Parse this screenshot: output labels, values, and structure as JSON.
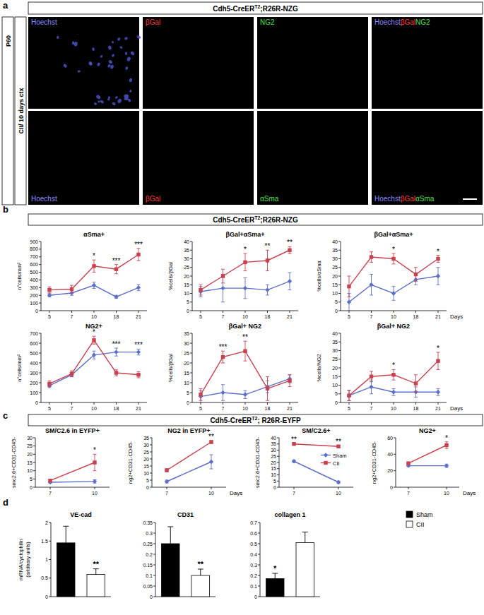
{
  "figure": {
    "panel_labels": [
      "a",
      "b",
      "c",
      "d"
    ],
    "panel_a": {
      "header": {
        "pre": "Cdh5-CreER",
        "sup": "T2",
        "post": ";R26R-NZG"
      },
      "side_labels": [
        "P60",
        "CII/ 10 days ctx"
      ],
      "rows": [
        [
          [
            {
              "text": "Hoechst",
              "color": "#8c8cff"
            }
          ],
          [
            {
              "text": "βGal",
              "color": "#ff3b3b"
            }
          ],
          [
            {
              "text": "NG2",
              "color": "#4fe04f"
            }
          ],
          [
            {
              "text": "Hoechst",
              "color": "#8c8cff"
            },
            {
              "text": "βGal",
              "color": "#ff3b3b"
            },
            {
              "text": "NG2",
              "color": "#4fe04f"
            }
          ]
        ],
        [
          [
            {
              "text": "Hoechst",
              "color": "#8c8cff"
            }
          ],
          [
            {
              "text": "βGal",
              "color": "#ff3b3b"
            }
          ],
          [
            {
              "text": "αSma",
              "color": "#4fe04f"
            }
          ],
          [
            {
              "text": "Hoechst",
              "color": "#8c8cff"
            },
            {
              "text": "βGal",
              "color": "#ff3b3b"
            },
            {
              "text": "αSma",
              "color": "#4fe04f"
            }
          ]
        ]
      ]
    },
    "panel_b": {
      "header": {
        "pre": "Cdh5-CreER",
        "sup": "T2",
        "post": ";R26R-NZG"
      }
    },
    "panel_c": {
      "header": {
        "pre": "Cdh5-CreER",
        "sup": "T2",
        "post": "; R26R-EYFP"
      }
    }
  },
  "chart_data": [
    {
      "type": "line",
      "title": "αSma+",
      "y_label": "n°cells/mm²",
      "categories": [
        "5",
        "7",
        "10",
        "18",
        "21"
      ],
      "ylim": [
        0,
        900
      ],
      "yticks": [
        0,
        100,
        200,
        300,
        400,
        500,
        600,
        700,
        800,
        900
      ],
      "series": [
        {
          "color": "#5b6fc9",
          "marker": "diamond",
          "values": [
            200,
            230,
            330,
            180,
            300
          ],
          "errors": [
            20,
            30,
            40,
            20,
            40
          ]
        },
        {
          "color": "#c8414e",
          "marker": "square",
          "values": [
            270,
            280,
            580,
            540,
            730
          ],
          "errors": [
            40,
            50,
            80,
            60,
            80
          ]
        }
      ],
      "annotations": [
        {
          "x": "10",
          "text": "*"
        },
        {
          "x": "18",
          "text": "***"
        },
        {
          "x": "21",
          "text": "***"
        }
      ]
    },
    {
      "type": "line",
      "title": "βGal+αSma+",
      "y_label": "%cells/βGal",
      "categories": [
        "5",
        "7",
        "10",
        "18",
        "21"
      ],
      "ylim": [
        0,
        40
      ],
      "yticks": [
        0,
        5,
        10,
        15,
        20,
        25,
        30,
        35,
        40
      ],
      "series": [
        {
          "color": "#5b6fc9",
          "marker": "diamond",
          "values": [
            11,
            13,
            13,
            12,
            17
          ],
          "errors": [
            3,
            8,
            6,
            3,
            5
          ]
        },
        {
          "color": "#c8414e",
          "marker": "square",
          "values": [
            12,
            20,
            28,
            29,
            35
          ],
          "errors": [
            3,
            4,
            5,
            6,
            2
          ]
        }
      ],
      "annotations": [
        {
          "x": "10",
          "text": "*"
        },
        {
          "x": "18",
          "text": "**"
        },
        {
          "x": "21",
          "text": "**"
        }
      ]
    },
    {
      "type": "line",
      "title": "βGal+αSma+",
      "y_label": "%cells/αSma",
      "x_label": "Days",
      "categories": [
        "5",
        "7",
        "10",
        "18",
        "21"
      ],
      "ylim": [
        0,
        40
      ],
      "yticks": [
        0,
        5,
        10,
        15,
        20,
        25,
        30,
        35,
        40
      ],
      "series": [
        {
          "color": "#5b6fc9",
          "marker": "diamond",
          "values": [
            5,
            15,
            10,
            18,
            20
          ],
          "errors": [
            5,
            6,
            4,
            3,
            5
          ]
        },
        {
          "color": "#c8414e",
          "marker": "square",
          "values": [
            14,
            31,
            30,
            21,
            30
          ],
          "errors": [
            6,
            3,
            3,
            4,
            2
          ]
        }
      ],
      "annotations": [
        {
          "x": "10",
          "text": "*"
        },
        {
          "x": "21",
          "text": "*"
        }
      ]
    },
    {
      "type": "line",
      "title": "NG2+",
      "y_label": "n°cells/mm²",
      "categories": [
        "5",
        "7",
        "10",
        "18",
        "21"
      ],
      "ylim": [
        0,
        700
      ],
      "yticks": [
        0,
        100,
        200,
        300,
        400,
        500,
        600,
        700
      ],
      "series": [
        {
          "color": "#5b6fc9",
          "marker": "diamond",
          "values": [
            170,
            280,
            480,
            510,
            510
          ],
          "errors": [
            20,
            20,
            40,
            40,
            30
          ]
        },
        {
          "color": "#c8414e",
          "marker": "square",
          "values": [
            190,
            290,
            630,
            300,
            280
          ],
          "errors": [
            30,
            30,
            40,
            30,
            30
          ]
        }
      ],
      "annotations": [
        {
          "x": "10",
          "text": "*"
        },
        {
          "x": "18",
          "text": "***"
        },
        {
          "x": "21",
          "text": "***"
        }
      ]
    },
    {
      "type": "line",
      "title": "βGal+ NG2",
      "y_label": "%cells/βGal",
      "categories": [
        "5",
        "7",
        "10",
        "18",
        "21"
      ],
      "ylim": [
        0,
        35
      ],
      "yticks": [
        0,
        5,
        10,
        15,
        20,
        25,
        30,
        35
      ],
      "series": [
        {
          "color": "#5b6fc9",
          "marker": "diamond",
          "values": [
            3,
            5,
            4,
            8,
            12
          ],
          "errors": [
            3,
            4,
            2,
            3,
            2
          ]
        },
        {
          "color": "#c8414e",
          "marker": "square",
          "values": [
            4,
            23,
            26,
            7,
            11
          ],
          "errors": [
            3,
            3,
            5,
            6,
            3
          ]
        }
      ],
      "annotations": [
        {
          "x": "7",
          "text": "***"
        },
        {
          "x": "10",
          "text": "**"
        }
      ]
    },
    {
      "type": "line",
      "title": "βGal+ NG2",
      "y_label": "%cells/NG2",
      "x_label": "Days",
      "categories": [
        "5",
        "7",
        "10",
        "18",
        "21"
      ],
      "ylim": [
        0,
        40
      ],
      "yticks": [
        0,
        5,
        10,
        15,
        20,
        25,
        30,
        35,
        40
      ],
      "series": [
        {
          "color": "#5b6fc9",
          "marker": "diamond",
          "values": [
            4,
            9,
            6,
            6,
            6
          ],
          "errors": [
            3,
            4,
            2,
            3,
            2
          ]
        },
        {
          "color": "#c8414e",
          "marker": "square",
          "values": [
            4,
            15,
            16,
            11,
            24
          ],
          "errors": [
            3,
            3,
            3,
            5,
            5
          ]
        }
      ],
      "annotations": [
        {
          "x": "10",
          "text": "*"
        },
        {
          "x": "21",
          "text": "*"
        }
      ]
    },
    {
      "type": "line",
      "title": "SM/C2.6 in EYFP+",
      "y_label": "smc2.6+CD31-CD45-",
      "categories": [
        "7",
        "10"
      ],
      "ylim": [
        0,
        30
      ],
      "yticks": [
        0,
        5,
        10,
        15,
        20,
        25,
        30
      ],
      "series": [
        {
          "color": "#5b6fc9",
          "marker": "diamond",
          "values": [
            3,
            3.5
          ],
          "errors": [
            0.5,
            1
          ]
        },
        {
          "color": "#c8414e",
          "marker": "square",
          "values": [
            4,
            15
          ],
          "errors": [
            0.5,
            5
          ]
        }
      ],
      "annotations": [
        {
          "x": "10",
          "text": "*"
        }
      ]
    },
    {
      "type": "line",
      "title": "NG2 in EYFP+",
      "y_label": "ng2+CD31-CD45-",
      "x_label": "Days",
      "categories": [
        "7",
        "10"
      ],
      "ylim": [
        0,
        35
      ],
      "yticks": [
        0,
        5,
        10,
        15,
        20,
        25,
        30,
        35
      ],
      "series": [
        {
          "color": "#5b6fc9",
          "marker": "diamond",
          "values": [
            4,
            18
          ],
          "errors": [
            1,
            5
          ]
        },
        {
          "color": "#c8414e",
          "marker": "square",
          "values": [
            12,
            32
          ],
          "errors": [
            1,
            1
          ]
        }
      ],
      "annotations": [
        {
          "x": "10",
          "text": "**"
        }
      ]
    },
    {
      "type": "line",
      "title": "SM/C2.6+",
      "y_label": "smc2.6+CD31-CD45-",
      "categories": [
        "7",
        "10"
      ],
      "ylim": [
        0,
        40
      ],
      "yticks": [
        0,
        5,
        10,
        15,
        20,
        25,
        30,
        35,
        40
      ],
      "legend": "right",
      "series": [
        {
          "name": "Sham",
          "color": "#5b6fc9",
          "marker": "diamond",
          "values": [
            21,
            4
          ],
          "errors": [
            1,
            1
          ]
        },
        {
          "name": "CII",
          "color": "#c8414e",
          "marker": "square",
          "values": [
            35,
            33
          ],
          "errors": [
            0.5,
            1
          ]
        }
      ],
      "annotations": [
        {
          "x": "7",
          "text": "**"
        },
        {
          "x": "10",
          "text": "**"
        }
      ]
    },
    {
      "type": "line",
      "title": "NG2+",
      "y_label": "ng2+CD31-CD45-",
      "x_label": "Days",
      "categories": [
        "7",
        "10"
      ],
      "ylim": [
        0,
        60
      ],
      "yticks": [
        0,
        20,
        40,
        60
      ],
      "series": [
        {
          "color": "#5b6fc9",
          "marker": "diamond",
          "values": [
            26,
            26
          ],
          "errors": [
            0.5,
            2
          ]
        },
        {
          "color": "#c8414e",
          "marker": "square",
          "values": [
            29,
            51
          ],
          "errors": [
            0.5,
            4
          ]
        }
      ],
      "annotations": [
        {
          "x": "10",
          "text": "*"
        }
      ]
    },
    {
      "type": "bar",
      "title": "VE-cad",
      "y_label": [
        "mRNA/cyclophilin",
        "(arbitrary units)"
      ],
      "categories": [
        "Sham",
        "CII"
      ],
      "colors": [
        "#000000",
        "#ffffff"
      ],
      "values": [
        1.45,
        0.6
      ],
      "errors": [
        0.45,
        0.15
      ],
      "ylim": [
        0,
        2
      ],
      "yticks": [
        0,
        0.5,
        1,
        1.5,
        2
      ],
      "annotations": [
        {
          "x": "CII",
          "text": "**"
        }
      ]
    },
    {
      "type": "bar",
      "title": "CD31",
      "categories": [
        "Sham",
        "CII"
      ],
      "colors": [
        "#000000",
        "#ffffff"
      ],
      "values": [
        0.25,
        0.1
      ],
      "errors": [
        0.08,
        0.03
      ],
      "ylim": [
        0,
        0.35
      ],
      "yticks": [
        0,
        0.05,
        0.1,
        0.15,
        0.2,
        0.25,
        0.3,
        0.35
      ],
      "annotations": [
        {
          "x": "CII",
          "text": "**"
        }
      ]
    },
    {
      "type": "bar",
      "title": "collagen 1",
      "categories": [
        "Sham",
        "CII"
      ],
      "legend": "top-right",
      "colors": [
        "#000000",
        "#ffffff"
      ],
      "values": [
        0.17,
        0.51
      ],
      "errors": [
        0.05,
        0.1
      ],
      "ylim": [
        0,
        0.7
      ],
      "yticks": [
        0,
        0.1,
        0.2,
        0.3,
        0.4,
        0.5,
        0.6,
        0.7
      ],
      "annotations": [
        {
          "x": "Sham",
          "text": "*"
        }
      ]
    }
  ]
}
